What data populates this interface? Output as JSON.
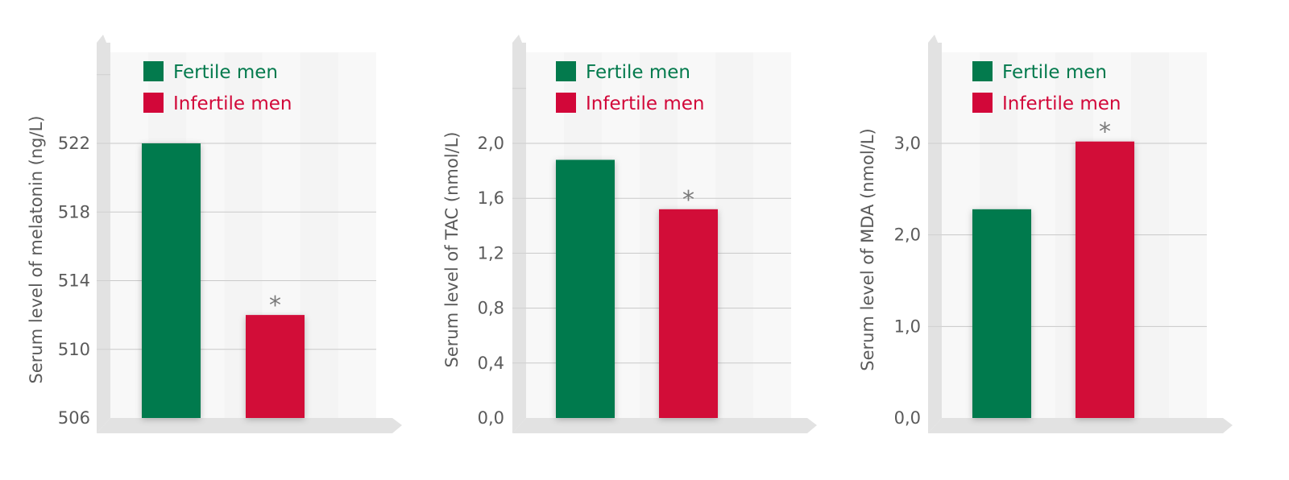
{
  "colors": {
    "fertile": "#037a4d",
    "infertile": "#d20739",
    "axis": "#e2e2e2",
    "plot_bg": "#f4f4f4",
    "text": "#5a5a5a",
    "star": "#7a7a7a"
  },
  "chart_data": [
    {
      "type": "bar",
      "ylabel": "Serum level of melatonin (ng/L)",
      "ylim": [
        506,
        526
      ],
      "yticks": [
        "506",
        "510",
        "514",
        "518",
        "522"
      ],
      "grid": true,
      "legend": "top-left",
      "categories": [
        "Fertile men",
        "Infertile men"
      ],
      "series": [
        {
          "name": "Fertile men",
          "value": 522
        },
        {
          "name": "Infertile men",
          "value": 512,
          "annotation": "*"
        }
      ]
    },
    {
      "type": "bar",
      "ylabel": "Serum level of TAC (nmol/L)",
      "ylim": [
        0,
        2.0
      ],
      "yticks": [
        "0,0",
        "0,4",
        "0,8",
        "1,2",
        "1,6",
        "2,0"
      ],
      "grid": true,
      "legend": "top-left",
      "categories": [
        "Fertile men",
        "Infertile men"
      ],
      "series": [
        {
          "name": "Fertile men",
          "value": 1.88
        },
        {
          "name": "Infertile men",
          "value": 1.52,
          "annotation": "*"
        }
      ]
    },
    {
      "type": "bar",
      "ylabel": "Serum level of MDA (nmol/L)",
      "ylim": [
        0,
        3.0
      ],
      "yticks": [
        "0,0",
        "1,0",
        "2,0",
        "3,0"
      ],
      "grid": true,
      "legend": "top-left",
      "categories": [
        "Fertile men",
        "Infertile men"
      ],
      "series": [
        {
          "name": "Fertile men",
          "value": 2.28
        },
        {
          "name": "Infertile men",
          "value": 3.02,
          "annotation": "*"
        }
      ]
    }
  ]
}
